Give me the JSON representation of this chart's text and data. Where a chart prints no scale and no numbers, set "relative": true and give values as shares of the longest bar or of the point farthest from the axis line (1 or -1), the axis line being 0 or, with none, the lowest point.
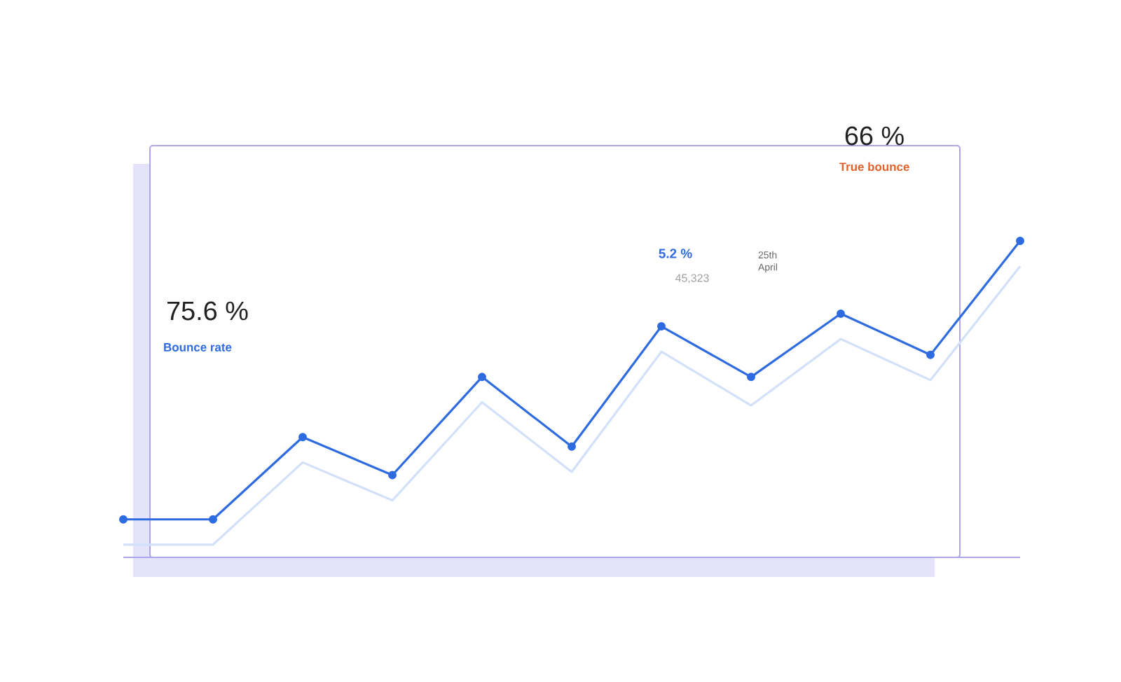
{
  "chart_data": {
    "type": "line",
    "relative": true,
    "categories": [
      null,
      null,
      null,
      null,
      null,
      null,
      null,
      null,
      null,
      null,
      null
    ],
    "series": [
      {
        "color": "#d3e0fa",
        "marker": "none",
        "values": [
          0.04,
          0.04,
          0.3,
          0.18,
          0.49,
          0.27,
          0.65,
          0.48,
          0.69,
          0.56,
          0.92
        ]
      },
      {
        "color": "#2f6be0",
        "marker": "circle",
        "values": [
          0.12,
          0.12,
          0.38,
          0.26,
          0.57,
          0.35,
          0.73,
          0.57,
          0.77,
          0.64,
          1.0
        ]
      }
    ],
    "line_style": "solid",
    "annotations": [
      "75.6 %",
      "Bounce rate",
      "66 %",
      "True bounce",
      "5.2 %",
      "45,323",
      "25th April"
    ]
  }
}
